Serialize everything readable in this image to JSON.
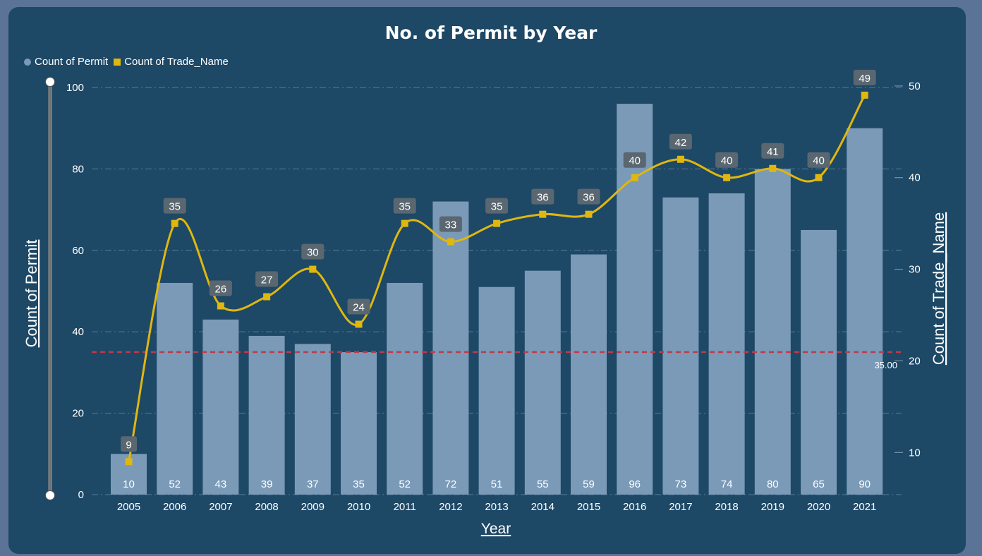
{
  "chart_data": {
    "type": "bar",
    "title": "No. of Permit by Year",
    "xlabel": "Year",
    "ylabel": "Count of Permit",
    "y2label": "Count of Trade_Name",
    "categories": [
      "2005",
      "2006",
      "2007",
      "2008",
      "2009",
      "2010",
      "2011",
      "2012",
      "2013",
      "2014",
      "2015",
      "2016",
      "2017",
      "2018",
      "2019",
      "2020",
      "2021"
    ],
    "series": [
      {
        "name": "Count of Permit",
        "kind": "bar",
        "axis": "left",
        "color": "#7a9ab8",
        "values": [
          10,
          52,
          43,
          39,
          37,
          35,
          52,
          72,
          51,
          55,
          59,
          96,
          73,
          74,
          80,
          65,
          90
        ]
      },
      {
        "name": "Count of Trade_Name",
        "kind": "line",
        "axis": "right",
        "color": "#e0b70f",
        "values": [
          9,
          35,
          26,
          27,
          30,
          24,
          35,
          33,
          35,
          36,
          36,
          40,
          42,
          40,
          41,
          40,
          49
        ]
      }
    ],
    "ylim": [
      0,
      100
    ],
    "yticks": [
      0,
      20,
      40,
      60,
      80,
      100
    ],
    "y2lim": [
      5.4,
      50.3
    ],
    "y2ticks": [
      10,
      20,
      30,
      40,
      50
    ],
    "reference_line": {
      "value": 35,
      "label": "35.00",
      "color": "#c0394b",
      "style": "dashed"
    },
    "grid": true,
    "legend_position": "top-left"
  }
}
